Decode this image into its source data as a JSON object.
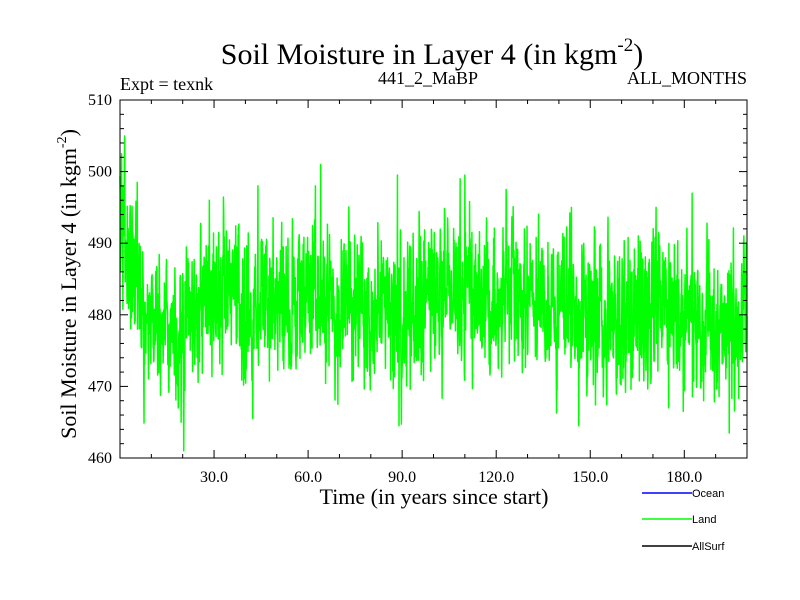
{
  "chart_data": {
    "type": "line",
    "title": "Soil Moisture in Layer 4 (in kgm",
    "title_superscript": "-2",
    "title_close": ")",
    "subtitle_left": "Expt = texnk",
    "subtitle_center": "441_2_MaBP",
    "subtitle_right": "ALL_MONTHS",
    "xlabel": "Time (in years since start)",
    "ylabel": "Soil Moisture in Layer 4 (in kgm",
    "ylabel_superscript": "-2",
    "ylabel_close": ")",
    "xlim": [
      0,
      200
    ],
    "ylim": [
      460,
      510
    ],
    "x_ticks": [
      30,
      60,
      90,
      120,
      150,
      180
    ],
    "x_tick_labels": [
      "30.0",
      "60.0",
      "90.0",
      "120.0",
      "150.0",
      "180.0"
    ],
    "y_ticks": [
      460,
      470,
      480,
      490,
      500,
      510
    ],
    "y_tick_labels": [
      "460",
      "470",
      "480",
      "490",
      "500",
      "510"
    ],
    "sampling": "monthly",
    "series": [
      {
        "name": "Land",
        "color": "#00ff00",
        "anchors": [
          [
            0,
            494
          ],
          [
            1,
            492
          ],
          [
            3,
            488
          ],
          [
            5,
            484
          ],
          [
            8,
            481
          ],
          [
            11,
            480
          ],
          [
            14,
            479
          ],
          [
            17,
            478
          ],
          [
            20,
            477
          ],
          [
            23,
            480
          ],
          [
            26,
            482
          ],
          [
            30,
            483
          ],
          [
            35,
            482
          ],
          [
            40,
            481
          ],
          [
            45,
            482
          ],
          [
            50,
            482
          ],
          [
            55,
            482
          ],
          [
            60,
            483
          ],
          [
            65,
            483
          ],
          [
            70,
            482
          ],
          [
            75,
            481
          ],
          [
            80,
            482
          ],
          [
            85,
            482
          ],
          [
            90,
            481
          ],
          [
            95,
            481
          ],
          [
            100,
            482
          ],
          [
            105,
            483
          ],
          [
            110,
            484
          ],
          [
            115,
            483
          ],
          [
            120,
            482
          ],
          [
            125,
            482
          ],
          [
            130,
            482
          ],
          [
            135,
            481
          ],
          [
            140,
            481
          ],
          [
            145,
            480
          ],
          [
            150,
            480
          ],
          [
            155,
            480
          ],
          [
            160,
            479
          ],
          [
            165,
            480
          ],
          [
            170,
            480
          ],
          [
            175,
            481
          ],
          [
            180,
            479
          ],
          [
            185,
            479
          ],
          [
            190,
            478
          ],
          [
            195,
            478
          ],
          [
            200,
            479
          ]
        ],
        "noise_amplitude": 7.5,
        "peaks": [
          [
            0.5,
            502.5
          ],
          [
            5.5,
            498.5
          ],
          [
            20.3,
            461
          ],
          [
            19.5,
            465
          ],
          [
            28.5,
            496
          ],
          [
            42.3,
            465.5
          ],
          [
            44,
            498
          ],
          [
            62.3,
            498
          ],
          [
            64,
            501
          ],
          [
            69.5,
            467.5
          ],
          [
            89,
            464.5
          ],
          [
            88.5,
            499.5
          ],
          [
            108.5,
            499
          ],
          [
            110,
            499.5
          ],
          [
            146.3,
            464.5
          ],
          [
            144,
            495
          ],
          [
            171,
            495
          ],
          [
            175,
            467
          ],
          [
            182.5,
            497
          ],
          [
            194.3,
            463.5
          ]
        ]
      },
      {
        "name": "Ocean",
        "color": "#0000ff",
        "values": []
      },
      {
        "name": "AllSurf",
        "color": "#000000",
        "values": []
      }
    ],
    "legend": {
      "position": "bottom-right",
      "entries": [
        {
          "label": "Ocean",
          "color": "#0000ff"
        },
        {
          "label": "Land",
          "color": "#00ff00"
        },
        {
          "label": "AllSurf",
          "color": "#000000"
        }
      ]
    },
    "grid": false
  }
}
